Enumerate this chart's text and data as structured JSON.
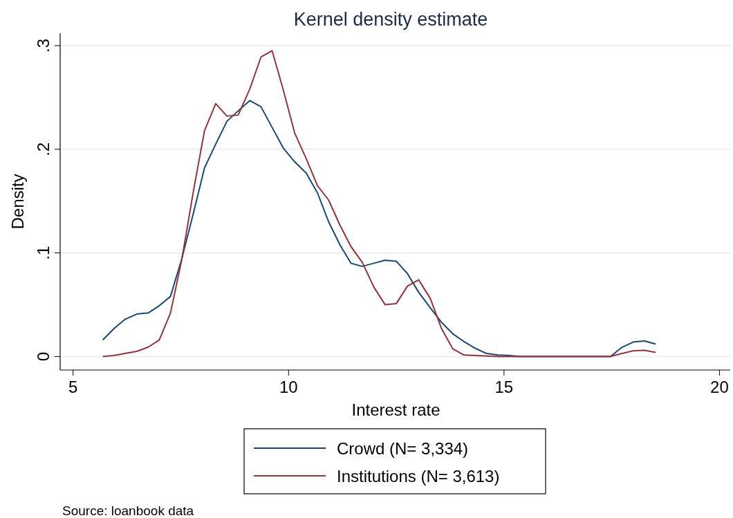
{
  "chart_data": {
    "type": "line",
    "title": "Kernel density estimate",
    "xlabel": "Interest rate",
    "ylabel": "Density",
    "x": [
      5.69,
      5.95,
      6.21,
      6.48,
      6.74,
      7.0,
      7.26,
      7.52,
      7.79,
      8.05,
      8.31,
      8.57,
      8.83,
      9.1,
      9.36,
      9.62,
      9.88,
      10.14,
      10.41,
      10.67,
      10.93,
      11.19,
      11.45,
      11.71,
      11.98,
      12.24,
      12.5,
      12.76,
      13.02,
      13.29,
      13.55,
      13.81,
      14.07,
      14.33,
      14.59,
      14.86,
      15.12,
      15.38,
      15.64,
      15.9,
      16.17,
      16.43,
      16.69,
      16.95,
      17.21,
      17.47,
      17.74,
      18.0,
      18.26,
      18.52
    ],
    "series": [
      {
        "name": "Crowd (N= 3,334)",
        "color": "#1a476f",
        "values": [
          0.016,
          0.027,
          0.036,
          0.041,
          0.042,
          0.049,
          0.058,
          0.094,
          0.138,
          0.182,
          0.205,
          0.227,
          0.237,
          0.247,
          0.241,
          0.221,
          0.201,
          0.188,
          0.177,
          0.158,
          0.13,
          0.108,
          0.09,
          0.087,
          0.09,
          0.093,
          0.092,
          0.08,
          0.062,
          0.047,
          0.033,
          0.022,
          0.0145,
          0.008,
          0.003,
          0.0015,
          0.001,
          0,
          0,
          0,
          0,
          0,
          0,
          0,
          0,
          0,
          0.009,
          0.014,
          0.015,
          0.012
        ]
      },
      {
        "name": "Institutions (N= 3,613)",
        "color": "#90353b",
        "values": [
          0.0,
          0.001,
          0.003,
          0.005,
          0.009,
          0.016,
          0.042,
          0.093,
          0.159,
          0.218,
          0.244,
          0.232,
          0.233,
          0.258,
          0.289,
          0.295,
          0.257,
          0.216,
          0.191,
          0.165,
          0.151,
          0.127,
          0.106,
          0.091,
          0.067,
          0.05,
          0.051,
          0.068,
          0.074,
          0.056,
          0.027,
          0.0075,
          0.0015,
          0.001,
          0.0005,
          0,
          0,
          0,
          0,
          0,
          0,
          0,
          0,
          0,
          0,
          0,
          0.003,
          0.0055,
          0.006,
          0.004
        ]
      }
    ],
    "xlim": [
      4.7,
      20.25
    ],
    "xticks": [
      5,
      10,
      15,
      20
    ],
    "ylim": [
      -0.013,
      0.312
    ],
    "yticks": [
      {
        "value": 0,
        "label": "0"
      },
      {
        "value": 0.1,
        "label": ".1"
      },
      {
        "value": 0.2,
        "label": ".2"
      },
      {
        "value": 0.3,
        "label": ".3"
      }
    ],
    "grid": "y",
    "legend": "bottom",
    "marker": "none",
    "line_style": "solid",
    "annotations": [
      "Source: loanbook data"
    ]
  }
}
